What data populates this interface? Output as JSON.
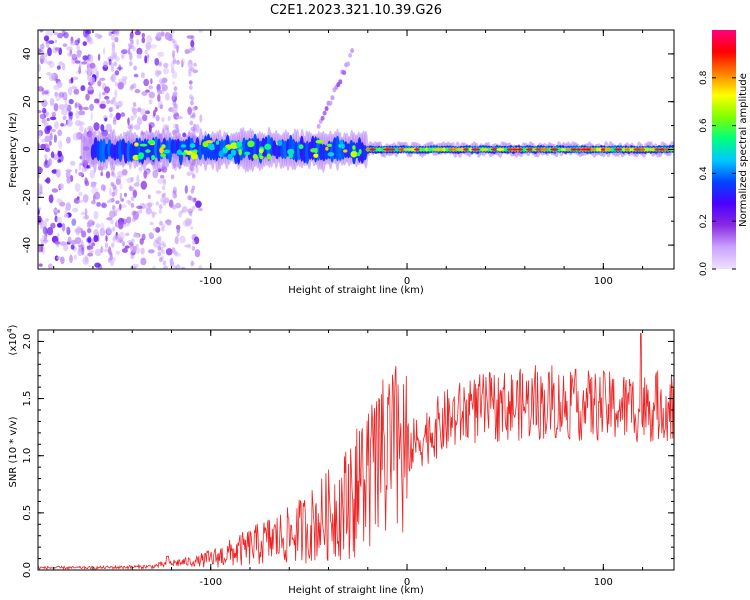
{
  "title": "C2E1.2023.321.10.39.G26",
  "chart_data": [
    {
      "type": "heatmap",
      "xlabel": "Height of straight line (km)",
      "ylabel": "Frequency (Hz)",
      "xlim": [
        -188,
        136
      ],
      "ylim": [
        -50,
        50
      ],
      "xticks": [
        -100,
        0,
        100
      ],
      "yticks": [
        40,
        20,
        0,
        -20,
        -40
      ],
      "colorbar": {
        "label": "Normalized spectral amplitude",
        "range": [
          0,
          1
        ],
        "ticks": [
          "0.0",
          "0.2",
          "0.4",
          "0.6",
          "0.8"
        ],
        "colormap": [
          "#f0e0ff",
          "#c9a4ff",
          "#8a2be2",
          "#4b00ff",
          "#0044ff",
          "#00c8ff",
          "#00ff80",
          "#80ff00",
          "#ffff00",
          "#ff8000",
          "#ff0000",
          "#ff007f"
        ]
      },
      "features": {
        "noise_region_x": [
          -188,
          -105
        ],
        "center_band_freq": 0,
        "band_halfwidth_hz_left": 6,
        "band_halfwidth_hz_right": 2.5,
        "strong_band_start_x": -20,
        "drifting_branch": [
          [
            -45,
            10
          ],
          [
            -28,
            40
          ]
        ]
      },
      "grid": false
    },
    {
      "type": "line",
      "xlabel": "Height of straight line (km)",
      "ylabel": "SNR (10 * v/v)",
      "yscale_label": "(x10",
      "yscale_exp": "4",
      "xlim": [
        -188,
        136
      ],
      "ylim": [
        0,
        2.1
      ],
      "xticks": [
        -100,
        0,
        100
      ],
      "yticks": [
        "0.0",
        "0.5",
        "1.0",
        "1.5",
        "2.0"
      ],
      "ytick_values": [
        0,
        0.5,
        1.0,
        1.5,
        2.0
      ],
      "color": "#ee2222",
      "envelope": [
        [
          -188,
          0.02
        ],
        [
          -160,
          0.02
        ],
        [
          -130,
          0.03
        ],
        [
          -120,
          0.06
        ],
        [
          -105,
          0.08
        ],
        [
          -95,
          0.12
        ],
        [
          -80,
          0.2
        ],
        [
          -70,
          0.26
        ],
        [
          -60,
          0.3
        ],
        [
          -50,
          0.38
        ],
        [
          -40,
          0.48
        ],
        [
          -30,
          0.6
        ],
        [
          -20,
          0.8
        ],
        [
          -10,
          0.95
        ],
        [
          0,
          1.05
        ],
        [
          10,
          1.18
        ],
        [
          20,
          1.3
        ],
        [
          30,
          1.38
        ],
        [
          40,
          1.42
        ],
        [
          60,
          1.45
        ],
        [
          80,
          1.45
        ],
        [
          100,
          1.43
        ],
        [
          120,
          1.42
        ],
        [
          136,
          1.45
        ]
      ],
      "grid": false
    }
  ]
}
